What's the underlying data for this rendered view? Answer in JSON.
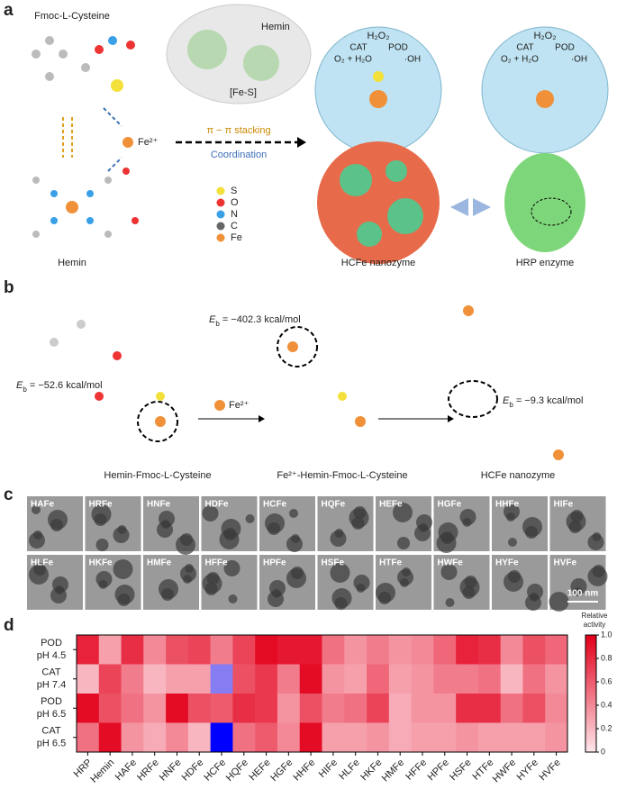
{
  "panel_a": {
    "label": "a",
    "fmoc": "Fmoc-L-Cysteine",
    "hemin_bubble": "Hemin",
    "fes": "[Fe-S]",
    "fe_ion": "Fe²⁺",
    "stacking": "π − π stacking",
    "coordination": "Coordination",
    "legend": [
      "S",
      "O",
      "N",
      "C",
      "Fe"
    ],
    "hemin": "Hemin",
    "hcfe": "HCFe nanozyme",
    "hrp": "HRP enzyme",
    "cycles": [
      {
        "h2o2": "H₂O₂",
        "cat": "CAT",
        "pod": "POD",
        "o2": "O₂ + H₂O",
        "oh": "·OH"
      },
      {
        "h2o2": "H₂O₂",
        "cat": "CAT",
        "pod": "POD",
        "o2": "O₂ + H₂O",
        "oh": "·OH"
      }
    ]
  },
  "panel_b": {
    "label": "b",
    "energies": [
      {
        "e": "E",
        "sub": "b",
        "rest": " = −52.6 kcal/mol"
      },
      {
        "e": "E",
        "sub": "b",
        "rest": " = −402.3 kcal/mol"
      },
      {
        "e": "E",
        "sub": "b",
        "rest": " = −9.3 kcal/mol"
      }
    ],
    "fe_ion": "Fe²⁺",
    "names": [
      "Hemin-Fmoc-L-Cysteine",
      "Fe²⁺-Hemin-Fmoc-L-Cysteine",
      "HCFe nanozyme"
    ]
  },
  "panel_c": {
    "label": "c",
    "images": [
      "HAFe",
      "HRFe",
      "HNFe",
      "HDFe",
      "HCFe",
      "HQFe",
      "HEFe",
      "HGFe",
      "HHFe",
      "HIFe",
      "HLFe",
      "HKFe",
      "HMFe",
      "HFFe",
      "HPFe",
      "HSFe",
      "HTFe",
      "HWFe",
      "HYFe",
      "HVFe"
    ],
    "scale": "100 nm"
  },
  "chart_data": {
    "type": "heatmap",
    "panel_label": "d",
    "categories": [
      "HRP",
      "Hemin",
      "HAFe",
      "HRFe",
      "HNFe",
      "HDFe",
      "HCFe",
      "HQFe",
      "HEFe",
      "HGFe",
      "HHFe",
      "HIFe",
      "HLFe",
      "HKFe",
      "HMFe",
      "HFFe",
      "HPFe",
      "HSFe",
      "HTFe",
      "HWFe",
      "HYFe",
      "HVFe"
    ],
    "rows": [
      [
        "POD",
        "pH 4.5"
      ],
      [
        "CAT",
        "pH 7.4"
      ],
      [
        "POD",
        "pH 6.5"
      ],
      [
        "CAT",
        "pH 6.5"
      ]
    ],
    "values": [
      [
        0.85,
        0.3,
        0.8,
        0.4,
        0.65,
        0.7,
        0.45,
        0.7,
        0.95,
        0.9,
        0.9,
        0.5,
        0.35,
        0.45,
        0.35,
        0.4,
        0.55,
        0.85,
        0.8,
        0.4,
        0.65,
        0.55
      ],
      [
        0.2,
        0.7,
        0.45,
        0.2,
        0.3,
        0.3,
        1.5,
        0.65,
        0.75,
        0.45,
        0.95,
        0.35,
        0.3,
        0.55,
        0.3,
        0.35,
        0.45,
        0.45,
        0.5,
        0.2,
        0.5,
        0.35
      ],
      [
        0.95,
        0.65,
        0.5,
        0.35,
        0.95,
        0.65,
        0.6,
        0.8,
        0.75,
        0.35,
        0.65,
        0.45,
        0.5,
        0.7,
        0.25,
        0.35,
        0.35,
        0.8,
        0.8,
        0.5,
        0.65,
        0.4
      ],
      [
        0.5,
        0.95,
        0.35,
        0.25,
        0.4,
        0.2,
        3,
        0.5,
        0.6,
        0.4,
        0.95,
        0.3,
        0.3,
        0.35,
        0.25,
        0.3,
        0.3,
        0.35,
        0.3,
        0.3,
        0.3,
        0.35
      ]
    ],
    "clim": [
      0,
      1
    ],
    "cticks": [
      0,
      0.2,
      0.4,
      0.6,
      0.8,
      {
        "value": 1,
        "label": "1.0"
      }
    ],
    "colormap": [
      "#fde4e9",
      "#e3001b"
    ],
    "over_colormap": [
      "#b2a6ee",
      "#0000ff"
    ],
    "over_lim": [
      1,
      3
    ],
    "colorbar_title": [
      "Relative",
      "activity"
    ]
  }
}
